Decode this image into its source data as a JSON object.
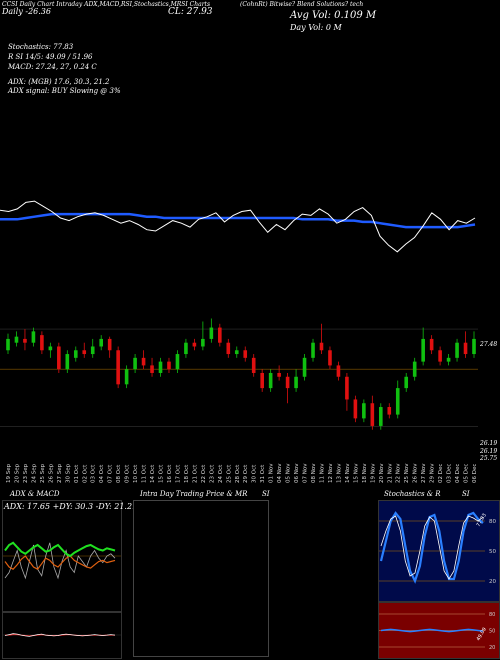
{
  "header": {
    "top_line": "CCSI Daily Chart Intraday ADX,MACD,RSI,Stochastics,MRSI Charts",
    "daily_change": "Daily -26.36",
    "cl_value": "CL: 27.93",
    "company": "(CohnRt) Bitwise? Blend Solutions? tech",
    "avg_vol": "Avg Vol: 0.109 M",
    "day_vol": "Day Vol: 0 M",
    "stochastics": "Stochastics: 77.83",
    "rsi": "R SI 14/5: 49.09 / 51.96",
    "macd": "MACD: 27.24, 27, 0.24 C",
    "adx": "ADX: (MGB) 17.6, 30.3, 21.2",
    "adx_signal": "ADX signal: BUY Slowing @ 3%"
  },
  "price_axis": {
    "top_label": "27.48",
    "bottom_labels": [
      "26.19",
      "26.19",
      "25.75"
    ]
  },
  "x_labels": [
    "19 Sep",
    "20 Sep",
    "23 Sep",
    "24 Sep",
    "25 Sep",
    "26 Sep",
    "27 Sep",
    "30 Sep",
    "01 Oct",
    "02 Oct",
    "03 Oct",
    "04 Oct",
    "07 Oct",
    "08 Oct",
    "09 Oct",
    "10 Oct",
    "11 Oct",
    "14 Oct",
    "15 Oct",
    "16 Oct",
    "17 Oct",
    "18 Oct",
    "21 Oct",
    "22 Oct",
    "23 Oct",
    "24 Oct",
    "25 Oct",
    "28 Oct",
    "29 Oct",
    "30 Oct",
    "31 Oct",
    "01 Nov",
    "04 Nov",
    "05 Nov",
    "06 Nov",
    "07 Nov",
    "08 Nov",
    "11 Nov",
    "12 Nov",
    "13 Nov",
    "14 Nov",
    "15 Nov",
    "18 Nov",
    "19 Nov",
    "20 Nov",
    "21 Nov",
    "22 Nov",
    "25 Nov",
    "26 Nov",
    "27 Nov",
    "29 Nov",
    "02 Dec",
    "03 Dec",
    "04 Dec",
    "05 Dec",
    "06 Dec"
  ],
  "panels": {
    "adx_title": "ADX & MACD",
    "adx_values": "ADX: 17.65 +DY: 30.3 -DY: 21.21",
    "intraday_title": "Intra Day Trading Price & MR",
    "intraday_si": "SI",
    "stoch_title": "Stochastics & R",
    "stoch_si": "SI",
    "stoch_ticks": [
      "80",
      "50",
      "20"
    ],
    "rsi_ticks": [
      "80",
      "50",
      "20"
    ],
    "stoch_value": "77.83",
    "rsi_value": "49.09"
  },
  "chart_data": [
    {
      "type": "line",
      "name": "main-rsi-overlay",
      "series": [
        {
          "values": [
            46,
            45,
            47,
            52,
            53,
            49,
            45,
            40,
            38,
            41,
            43,
            44,
            42,
            39,
            36,
            38,
            35,
            31,
            30,
            34,
            38,
            36,
            33,
            39,
            41,
            44,
            37,
            42,
            45,
            46,
            37,
            29,
            35,
            31,
            38,
            43,
            42,
            47,
            43,
            36,
            39,
            45,
            48,
            42,
            26,
            19,
            14,
            20,
            25,
            34,
            44,
            39,
            31,
            38,
            36,
            40
          ]
        },
        {
          "values": [
            39,
            39,
            39,
            40,
            41,
            42,
            43,
            43,
            43,
            43,
            43,
            43,
            43,
            43,
            43,
            43,
            42,
            41,
            41,
            40,
            40,
            40,
            40,
            40,
            40,
            40,
            40,
            40,
            40,
            40,
            40,
            40,
            40,
            40,
            40,
            39,
            39,
            39,
            39,
            38,
            38,
            38,
            37,
            37,
            36,
            35,
            34,
            33,
            33,
            33,
            33,
            33,
            33,
            33,
            34,
            35
          ]
        }
      ]
    },
    {
      "type": "candlestick",
      "name": "price",
      "ylim": [
        25.75,
        27.6
      ],
      "candles": [
        [
          27.2,
          27.35,
          27.42,
          27.15
        ],
        [
          27.3,
          27.38,
          27.45,
          27.25
        ],
        [
          27.35,
          27.3,
          27.48,
          27.2
        ],
        [
          27.3,
          27.45,
          27.5,
          27.25
        ],
        [
          27.4,
          27.2,
          27.45,
          27.15
        ],
        [
          27.2,
          27.25,
          27.3,
          27.1
        ],
        [
          27.25,
          26.95,
          27.3,
          26.9
        ],
        [
          26.95,
          27.15,
          27.2,
          26.9
        ],
        [
          27.1,
          27.2,
          27.25,
          27.05
        ],
        [
          27.2,
          27.15,
          27.3,
          27.1
        ],
        [
          27.15,
          27.25,
          27.35,
          27.1
        ],
        [
          27.25,
          27.35,
          27.4,
          27.2
        ],
        [
          27.35,
          27.2,
          27.38,
          27.1
        ],
        [
          27.2,
          26.75,
          27.25,
          26.7
        ],
        [
          26.75,
          26.95,
          27.0,
          26.7
        ],
        [
          26.95,
          27.1,
          27.15,
          26.9
        ],
        [
          27.1,
          27.0,
          27.2,
          26.95
        ],
        [
          27.0,
          26.9,
          27.1,
          26.85
        ],
        [
          26.9,
          27.05,
          27.1,
          26.85
        ],
        [
          27.05,
          26.95,
          27.1,
          26.9
        ],
        [
          26.95,
          27.15,
          27.2,
          26.9
        ],
        [
          27.15,
          27.3,
          27.35,
          27.1
        ],
        [
          27.3,
          27.25,
          27.35,
          27.2
        ],
        [
          27.25,
          27.35,
          27.58,
          27.2
        ],
        [
          27.35,
          27.5,
          27.62,
          27.3
        ],
        [
          27.5,
          27.3,
          27.55,
          27.25
        ],
        [
          27.3,
          27.15,
          27.35,
          27.1
        ],
        [
          27.15,
          27.2,
          27.25,
          27.1
        ],
        [
          27.2,
          27.1,
          27.25,
          27.05
        ],
        [
          27.1,
          26.9,
          27.15,
          26.85
        ],
        [
          26.9,
          26.7,
          26.95,
          26.65
        ],
        [
          26.7,
          26.9,
          26.95,
          26.65
        ],
        [
          26.9,
          26.85,
          27.0,
          26.8
        ],
        [
          26.85,
          26.7,
          26.9,
          26.5
        ],
        [
          26.7,
          26.85,
          26.95,
          26.65
        ],
        [
          26.85,
          27.1,
          27.15,
          26.8
        ],
        [
          27.1,
          27.3,
          27.35,
          27.05
        ],
        [
          27.3,
          27.2,
          27.55,
          27.15
        ],
        [
          27.2,
          27.0,
          27.25,
          26.95
        ],
        [
          27.0,
          26.85,
          27.05,
          26.8
        ],
        [
          26.85,
          26.55,
          26.9,
          26.4
        ],
        [
          26.55,
          26.3,
          26.6,
          26.25
        ],
        [
          26.3,
          26.5,
          26.55,
          26.25
        ],
        [
          26.5,
          26.2,
          26.6,
          26.15
        ],
        [
          26.2,
          26.45,
          26.5,
          26.15
        ],
        [
          26.45,
          26.35,
          26.5,
          26.3
        ],
        [
          26.35,
          26.7,
          26.8,
          26.3
        ],
        [
          26.7,
          26.85,
          26.9,
          26.65
        ],
        [
          26.85,
          27.05,
          27.1,
          26.8
        ],
        [
          27.05,
          27.35,
          27.5,
          27.0
        ],
        [
          27.35,
          27.2,
          27.4,
          27.15
        ],
        [
          27.2,
          27.05,
          27.25,
          27.0
        ],
        [
          27.05,
          27.1,
          27.15,
          27.0
        ],
        [
          27.1,
          27.3,
          27.35,
          27.05
        ],
        [
          27.3,
          27.15,
          27.45,
          27.1
        ],
        [
          27.15,
          27.35,
          27.45,
          27.1
        ]
      ]
    },
    {
      "type": "line",
      "name": "adx-macd",
      "series": [
        {
          "values": [
            55,
            60,
            62,
            58,
            54,
            52,
            55,
            58,
            60,
            57,
            54,
            55,
            58,
            60,
            56,
            52,
            50,
            53,
            55,
            57,
            59,
            60,
            58,
            56,
            55,
            57,
            56,
            55
          ]
        },
        {
          "values": [
            45,
            40,
            38,
            42,
            47,
            50,
            45,
            40,
            38,
            43,
            48,
            46,
            42,
            40,
            44,
            48,
            50,
            46,
            44,
            42,
            40,
            39,
            42,
            45,
            46,
            44,
            45,
            46
          ]
        },
        {
          "values": [
            30,
            35,
            45,
            55,
            40,
            30,
            45,
            60,
            38,
            32,
            50,
            62,
            40,
            30,
            45,
            55,
            40,
            35,
            50,
            45,
            40,
            50,
            55,
            48,
            44,
            50,
            52,
            48
          ]
        }
      ]
    },
    {
      "type": "line",
      "name": "macd",
      "series": [
        {
          "values": [
            50,
            52,
            54,
            53,
            51,
            49,
            48,
            50,
            52,
            53,
            51,
            50,
            49,
            50,
            52,
            53,
            52,
            51,
            50,
            49,
            50,
            51,
            52,
            51,
            50,
            51,
            52,
            51
          ]
        },
        {
          "values": [
            51,
            51,
            52,
            52,
            51,
            50,
            49,
            50,
            51,
            52,
            51,
            50,
            50,
            50,
            51,
            52,
            52,
            51,
            50,
            50,
            50,
            51,
            51,
            51,
            50,
            51,
            51,
            51
          ]
        }
      ]
    },
    {
      "type": "line",
      "name": "stochastics",
      "series": [
        {
          "values": [
            55,
            70,
            82,
            85,
            70,
            40,
            25,
            28,
            50,
            75,
            84,
            80,
            55,
            30,
            22,
            30,
            55,
            78,
            85,
            83,
            80,
            84
          ]
        },
        {
          "values": [
            40,
            60,
            80,
            88,
            82,
            55,
            30,
            20,
            35,
            65,
            84,
            86,
            70,
            40,
            22,
            22,
            40,
            70,
            86,
            88,
            82,
            78
          ]
        }
      ]
    },
    {
      "type": "line",
      "name": "rsi",
      "series": [
        {
          "values": [
            50,
            51,
            52,
            51,
            50,
            49,
            48,
            49,
            50,
            51,
            52,
            51,
            50,
            49,
            48,
            49,
            50,
            51,
            52,
            51,
            50,
            49
          ]
        }
      ]
    }
  ]
}
